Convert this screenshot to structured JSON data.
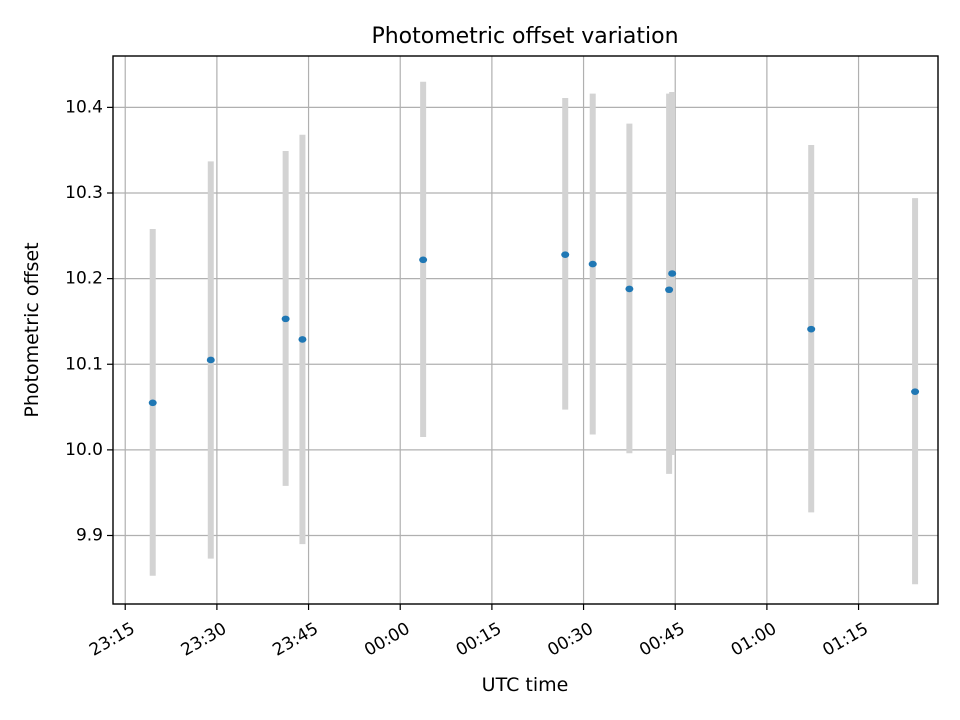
{
  "chart_data": {
    "type": "scatter",
    "title": "Photometric offset variation",
    "xlabel": "UTC time",
    "ylabel": "Photometric offset",
    "x_axis_type": "time",
    "xlim": [
      "23:13",
      "01:28"
    ],
    "ylim": [
      9.82,
      10.46
    ],
    "x_ticks": [
      "23:15",
      "23:30",
      "23:45",
      "00:00",
      "00:15",
      "00:30",
      "00:45",
      "01:00",
      "01:15"
    ],
    "y_ticks": [
      9.9,
      10.0,
      10.1,
      10.2,
      10.3,
      10.4
    ],
    "grid": true,
    "errorbar_color": "#d3d3d3",
    "point_color": "#1f77b4",
    "points": [
      {
        "x": "23:19:30",
        "y": 10.055,
        "err_low": 9.853,
        "err_high": 10.258
      },
      {
        "x": "23:29:00",
        "y": 10.105,
        "err_low": 9.873,
        "err_high": 10.337
      },
      {
        "x": "23:41:15",
        "y": 10.153,
        "err_low": 9.958,
        "err_high": 10.349
      },
      {
        "x": "23:44:00",
        "y": 10.129,
        "err_low": 9.89,
        "err_high": 10.368
      },
      {
        "x": "00:03:45",
        "y": 10.222,
        "err_low": 10.015,
        "err_high": 10.43
      },
      {
        "x": "00:27:00",
        "y": 10.228,
        "err_low": 10.047,
        "err_high": 10.411
      },
      {
        "x": "00:31:30",
        "y": 10.217,
        "err_low": 10.018,
        "err_high": 10.416
      },
      {
        "x": "00:37:30",
        "y": 10.188,
        "err_low": 9.996,
        "err_high": 10.381
      },
      {
        "x": "00:44:00",
        "y": 10.187,
        "err_low": 9.972,
        "err_high": 10.416
      },
      {
        "x": "00:44:30",
        "y": 10.206,
        "err_low": 9.994,
        "err_high": 10.418
      },
      {
        "x": "01:07:15",
        "y": 10.141,
        "err_low": 9.927,
        "err_high": 10.356
      },
      {
        "x": "01:24:15",
        "y": 10.068,
        "err_low": 9.843,
        "err_high": 10.294
      }
    ]
  }
}
